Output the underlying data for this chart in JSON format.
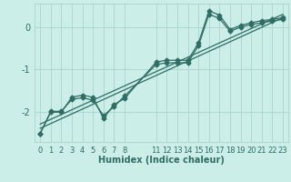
{
  "title": "",
  "xlabel": "Humidex (Indice chaleur)",
  "bg_color": "#cceee8",
  "grid_color": "#aad4cc",
  "line_color": "#2e6e64",
  "ylim": [
    -2.7,
    0.55
  ],
  "xlim": [
    -0.5,
    23.5
  ],
  "yticks": [
    0,
    -1,
    -2
  ],
  "xticks": [
    0,
    1,
    2,
    3,
    4,
    5,
    6,
    7,
    8,
    11,
    12,
    13,
    14,
    15,
    16,
    17,
    18,
    19,
    20,
    21,
    22,
    23
  ],
  "series1_x": [
    0,
    1,
    2,
    3,
    4,
    5,
    6,
    7,
    8,
    11,
    12,
    13,
    14,
    15,
    16,
    17,
    18,
    19,
    20,
    21,
    22,
    23
  ],
  "series1_y": [
    -2.5,
    -2.0,
    -2.0,
    -1.65,
    -1.6,
    -1.65,
    -2.15,
    -1.82,
    -1.68,
    -0.82,
    -0.78,
    -0.78,
    -0.78,
    -0.38,
    0.38,
    0.28,
    -0.06,
    0.04,
    0.1,
    0.15,
    0.18,
    0.22
  ],
  "series2_x": [
    0,
    1,
    2,
    3,
    4,
    5,
    6,
    7,
    8,
    11,
    12,
    13,
    14,
    15,
    16,
    17,
    18,
    19,
    20,
    21,
    22,
    23
  ],
  "series2_y": [
    -2.5,
    -1.98,
    -1.98,
    -1.7,
    -1.66,
    -1.72,
    -2.08,
    -1.87,
    -1.62,
    -0.88,
    -0.84,
    -0.84,
    -0.84,
    -0.44,
    0.3,
    0.2,
    -0.1,
    0.0,
    0.06,
    0.1,
    0.14,
    0.18
  ],
  "trend1_x": [
    0,
    23
  ],
  "trend1_y": [
    -2.38,
    0.22
  ],
  "trend2_x": [
    0,
    23
  ],
  "trend2_y": [
    -2.28,
    0.3
  ],
  "marker": "D",
  "marker_size": 2.5,
  "linewidth": 0.9
}
